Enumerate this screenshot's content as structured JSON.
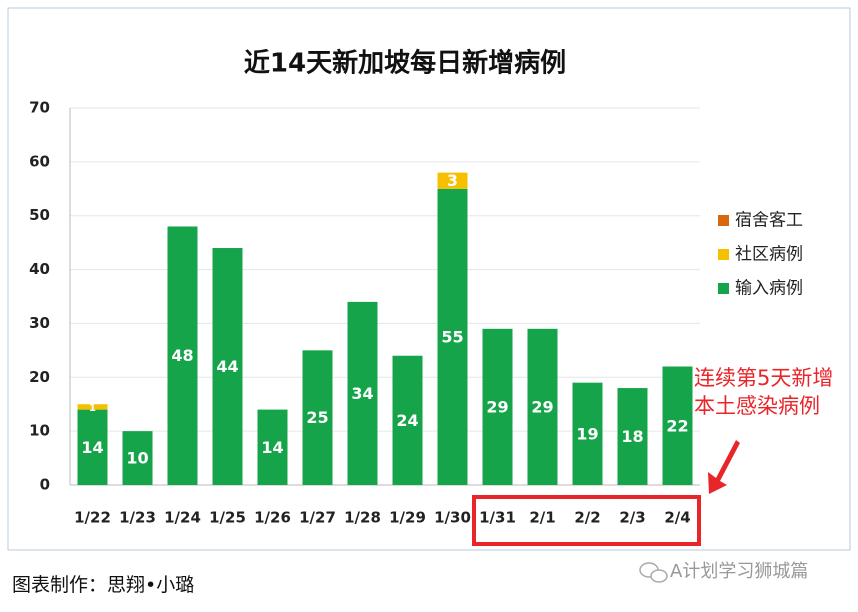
{
  "chart_data": {
    "type": "stacked_bar",
    "title": "近14天新加坡每日新增病例",
    "categories": [
      "1/22",
      "1/23",
      "1/24",
      "1/25",
      "1/26",
      "1/27",
      "1/28",
      "1/29",
      "1/30",
      "1/31",
      "2/1",
      "2/2",
      "2/3",
      "2/4"
    ],
    "series": [
      {
        "name": "输入病例",
        "color": "#16a44a",
        "values": [
          14,
          10,
          48,
          44,
          14,
          25,
          34,
          24,
          55,
          29,
          29,
          19,
          18,
          22
        ]
      },
      {
        "name": "社区病例",
        "color": "#f6c000",
        "values": [
          1,
          0,
          0,
          0,
          0,
          0,
          0,
          0,
          3,
          0,
          0,
          0,
          0,
          0
        ]
      },
      {
        "name": "宿舍客工",
        "color": "#d8680f",
        "values": [
          0,
          0,
          0,
          0,
          0,
          0,
          0,
          0,
          0,
          0,
          0,
          0,
          0,
          0
        ]
      }
    ],
    "ylim": [
      0,
      70
    ],
    "yticks": [
      0,
      10,
      20,
      30,
      40,
      50,
      60,
      70
    ],
    "grid": true,
    "legend": "right",
    "annotation": [
      "连续第5天新增",
      "本土感染病例"
    ],
    "footer": "图表制作：思翔•小璐",
    "watermark": "A计划学习狮城篇"
  }
}
